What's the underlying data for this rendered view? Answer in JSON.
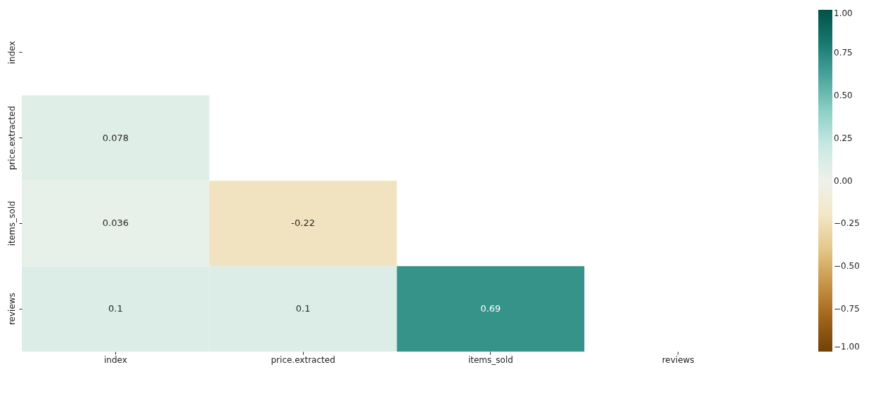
{
  "chart_data": {
    "type": "heatmap",
    "categories": [
      "index",
      "price.extracted",
      "items_sold",
      "reviews"
    ],
    "y_categories": [
      "index",
      "price.extracted",
      "items_sold",
      "reviews"
    ],
    "cells": [
      [
        null,
        null,
        null,
        null
      ],
      [
        0.078,
        null,
        null,
        null
      ],
      [
        0.036,
        -0.22,
        null,
        null
      ],
      [
        0.1,
        0.1,
        0.69,
        null
      ]
    ],
    "data_labels": true,
    "clim": [
      -1,
      1
    ],
    "cticks": [
      {
        "value": 1,
        "label": "1.00"
      },
      {
        "value": 0.75,
        "label": "0.75"
      },
      {
        "value": 0.5,
        "label": "0.50"
      },
      {
        "value": 0.25,
        "label": "0.25"
      },
      {
        "value": 0,
        "label": "0.00"
      },
      {
        "value": -0.25,
        "label": "−0.25"
      },
      {
        "value": -0.5,
        "label": "−0.50"
      },
      {
        "value": -0.75,
        "label": "−0.75"
      },
      {
        "value": -1,
        "label": "−1.00"
      }
    ]
  }
}
